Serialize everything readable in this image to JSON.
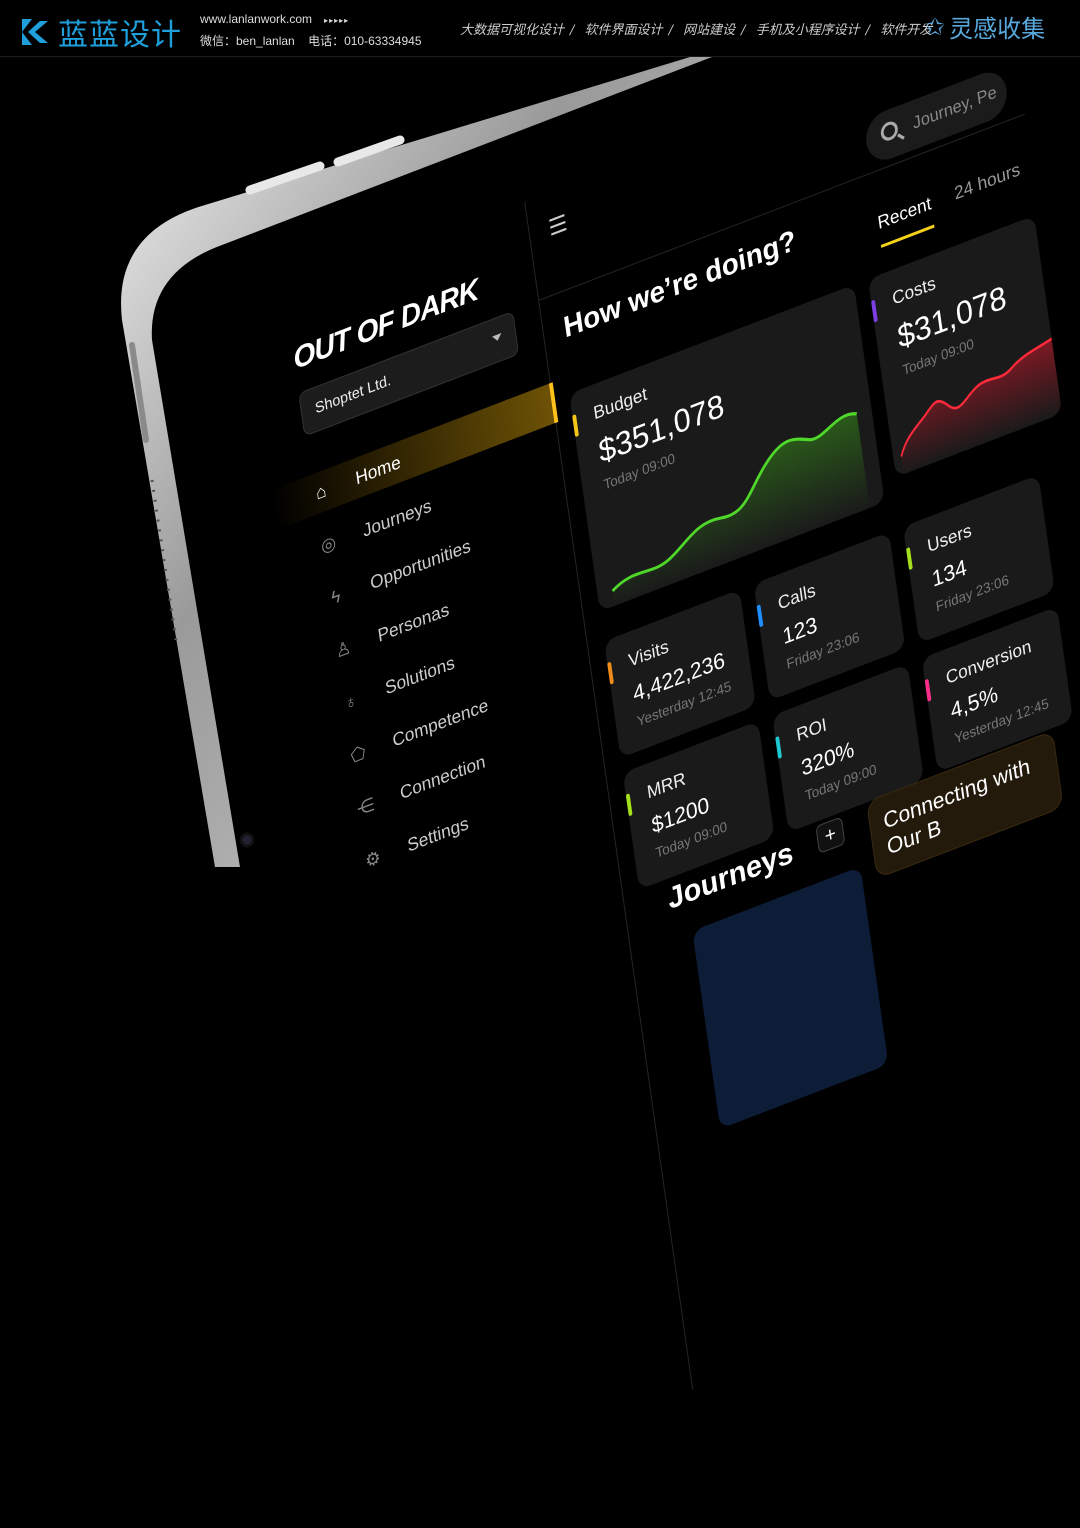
{
  "banner": {
    "logo_text": "蓝蓝设计",
    "website": "www.lanlanwork.com",
    "arrows": "▸▸▸▸▸",
    "wechat": "微信：ben_lanlan",
    "phone": "电话：010-63334945",
    "services": [
      "大数据可视化设计",
      "软件界面设计",
      "网站建设",
      "手机及小程序设计",
      "软件开发"
    ],
    "separator": "/",
    "collection": "灵感收集"
  },
  "sidebar": {
    "logo": "OUT OF DARK",
    "company": "Shoptet Ltd.",
    "items": [
      {
        "label": "Home",
        "icon": "home-icon",
        "glyph": "⌂"
      },
      {
        "label": "Journeys",
        "icon": "compass-icon",
        "glyph": "◎"
      },
      {
        "label": "Opportunities",
        "icon": "lightning-icon",
        "glyph": "ϟ"
      },
      {
        "label": "Personas",
        "icon": "person-icon",
        "glyph": "♙"
      },
      {
        "label": "Solutions",
        "icon": "lightbulb-icon",
        "glyph": "♁"
      },
      {
        "label": "Competence",
        "icon": "tag-icon",
        "glyph": "⬠"
      },
      {
        "label": "Connection",
        "icon": "share-icon",
        "glyph": "⋲"
      },
      {
        "label": "Settings",
        "icon": "gear-icon",
        "glyph": "⚙"
      }
    ]
  },
  "topbar": {
    "search_placeholder": "Journey, Pe",
    "tabs": [
      "Recent",
      "24 hours"
    ]
  },
  "main": {
    "title": "How we’re doing?",
    "cards": [
      {
        "label": "Budget",
        "value": "$351,078",
        "sub": "Today 09:00",
        "color": "#f5c518"
      },
      {
        "label": "Costs",
        "value": "$31,078",
        "sub": "Today 09:00",
        "color": "#7b3fe4"
      },
      {
        "label": "Visits",
        "value": "4,422,236",
        "sub": "Yesterday 12:45",
        "color": "#f08c1a"
      },
      {
        "label": "Calls",
        "value": "123",
        "sub": "Friday 23:06",
        "color": "#1e90ff"
      },
      {
        "label": "Users",
        "value": "134",
        "sub": "Friday 23:06",
        "color": "#a4e01c"
      },
      {
        "label": "MRR",
        "value": "$1200",
        "sub": "Today 09:00",
        "color": "#a4e01c"
      },
      {
        "label": "ROI",
        "value": "320%",
        "sub": "Today 09:00",
        "color": "#1ec8d0"
      },
      {
        "label": "Conversion",
        "value": "4,5%",
        "sub": "Yesterday 12:45",
        "color": "#ff2d8a"
      }
    ],
    "journeys_title": "Journeys",
    "add_label": "+",
    "connecting_title": "Connecting with Our B"
  }
}
